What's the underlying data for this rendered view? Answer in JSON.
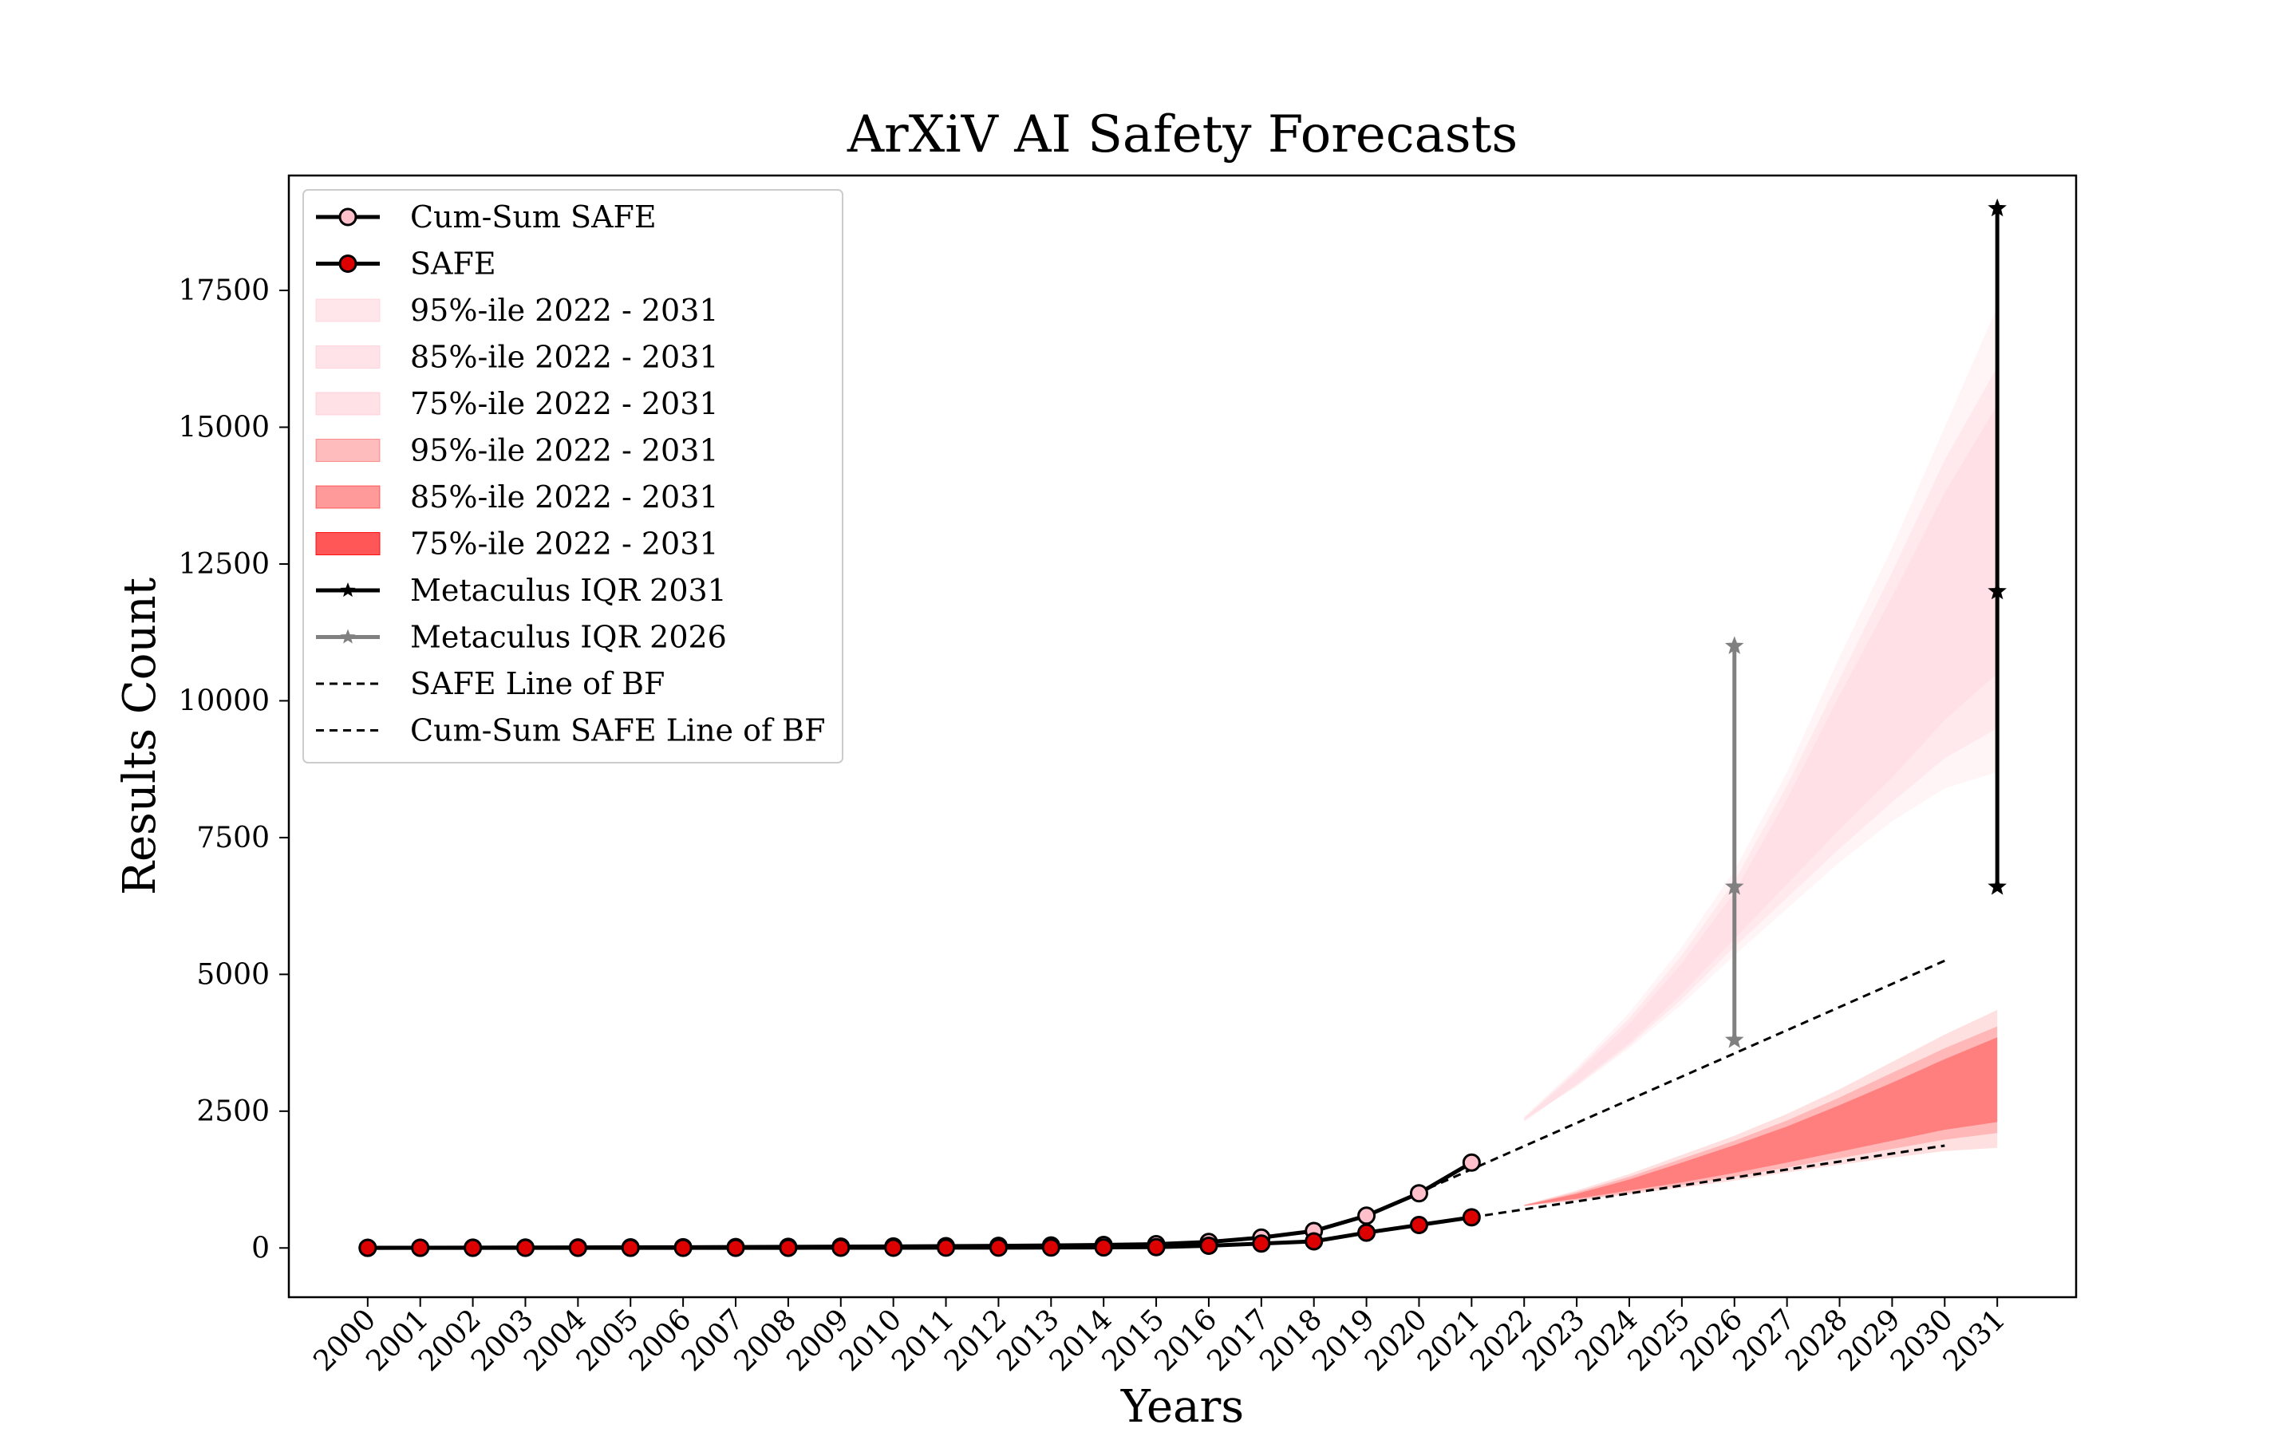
{
  "chart_data": {
    "type": "line",
    "title": "ArXiV AI Safety Forecasts",
    "xlabel": "Years",
    "ylabel": "Results Count",
    "xlim": [
      1998.5,
      2032.5
    ],
    "ylim": [
      -900,
      19600
    ],
    "grid": false,
    "legend_position": "upper-left",
    "x_ticks": [
      2000,
      2001,
      2002,
      2003,
      2004,
      2005,
      2006,
      2007,
      2008,
      2009,
      2010,
      2011,
      2012,
      2013,
      2014,
      2015,
      2016,
      2017,
      2018,
      2019,
      2020,
      2021,
      2022,
      2023,
      2024,
      2025,
      2026,
      2027,
      2028,
      2029,
      2030,
      2031
    ],
    "y_ticks": [
      0,
      2500,
      5000,
      7500,
      10000,
      12500,
      15000,
      17500
    ],
    "series": [
      {
        "name": "Cum-Sum SAFE",
        "kind": "line-marker",
        "color": "#000000",
        "marker_fill": "#ffc0cb",
        "x": [
          2000,
          2001,
          2002,
          2003,
          2004,
          2005,
          2006,
          2007,
          2008,
          2009,
          2010,
          2011,
          2012,
          2013,
          2014,
          2015,
          2016,
          2017,
          2018,
          2019,
          2020,
          2021
        ],
        "y": [
          2,
          4,
          6,
          8,
          10,
          12,
          14,
          17,
          20,
          24,
          28,
          33,
          38,
          45,
          55,
          70,
          110,
          190,
          310,
          590,
          1000,
          1560
        ]
      },
      {
        "name": "SAFE",
        "kind": "line-marker",
        "color": "#000000",
        "marker_fill": "#dd0000",
        "x": [
          2000,
          2001,
          2002,
          2003,
          2004,
          2005,
          2006,
          2007,
          2008,
          2009,
          2010,
          2011,
          2012,
          2013,
          2014,
          2015,
          2016,
          2017,
          2018,
          2019,
          2020,
          2021
        ],
        "y": [
          2,
          2,
          2,
          2,
          2,
          2,
          2,
          3,
          3,
          4,
          4,
          5,
          5,
          7,
          10,
          15,
          40,
          80,
          120,
          280,
          420,
          560
        ]
      },
      {
        "name": "95%-ile 2022 - 2031",
        "kind": "band",
        "color": "#ffc0cb",
        "opacity": 0.18,
        "x": [
          2022,
          2023,
          2024,
          2025,
          2026,
          2027,
          2028,
          2029,
          2030,
          2031
        ],
        "low": [
          2350,
          2950,
          3650,
          4450,
          5350,
          6200,
          7050,
          7800,
          8400,
          8700
        ],
        "high": [
          2400,
          3300,
          4300,
          5500,
          6900,
          8700,
          10800,
          12800,
          15000,
          17200
        ]
      },
      {
        "name": "85%-ile 2022 - 2031",
        "kind": "band",
        "color": "#ffc0cb",
        "opacity": 0.2,
        "x": [
          2022,
          2023,
          2024,
          2025,
          2026,
          2027,
          2028,
          2029,
          2030,
          2031
        ],
        "low": [
          2330,
          2970,
          3700,
          4550,
          5500,
          6400,
          7300,
          8150,
          8950,
          9500
        ],
        "high": [
          2380,
          3250,
          4200,
          5350,
          6700,
          8450,
          10400,
          12350,
          14400,
          16100
        ]
      },
      {
        "name": "75%-ile 2022 - 2031",
        "kind": "band",
        "color": "#ffc0cb",
        "opacity": 0.22,
        "x": [
          2022,
          2023,
          2024,
          2025,
          2026,
          2027,
          2028,
          2029,
          2030,
          2031
        ],
        "low": [
          2300,
          3000,
          3750,
          4650,
          5650,
          6650,
          7650,
          8600,
          9650,
          10500
        ],
        "high": [
          2360,
          3200,
          4100,
          5200,
          6500,
          8200,
          10100,
          11900,
          13800,
          15400
        ]
      },
      {
        "name": "95%-ile 2022 - 2031",
        "kind": "band",
        "color": "#ff0000",
        "opacity": 0.12,
        "x": [
          2022,
          2023,
          2024,
          2025,
          2026,
          2027,
          2028,
          2029,
          2030,
          2031
        ],
        "low": [
          760,
          860,
          980,
          1100,
          1230,
          1380,
          1520,
          1650,
          1770,
          1830
        ],
        "high": [
          790,
          1050,
          1350,
          1700,
          2050,
          2450,
          2900,
          3400,
          3900,
          4350
        ]
      },
      {
        "name": "85%-ile 2022 - 2031",
        "kind": "band",
        "color": "#ff0000",
        "opacity": 0.18,
        "x": [
          2022,
          2023,
          2024,
          2025,
          2026,
          2027,
          2028,
          2029,
          2030,
          2031
        ],
        "low": [
          770,
          880,
          1010,
          1150,
          1300,
          1470,
          1640,
          1810,
          1980,
          2100
        ],
        "high": [
          785,
          1020,
          1300,
          1630,
          1960,
          2330,
          2750,
          3200,
          3650,
          4050
        ]
      },
      {
        "name": "75%-ile 2022 - 2031",
        "kind": "band",
        "color": "#ff0000",
        "opacity": 0.3,
        "x": [
          2022,
          2023,
          2024,
          2025,
          2026,
          2027,
          2028,
          2029,
          2030,
          2031
        ],
        "low": [
          775,
          900,
          1050,
          1200,
          1370,
          1560,
          1760,
          1960,
          2160,
          2300
        ],
        "high": [
          780,
          990,
          1250,
          1560,
          1880,
          2220,
          2610,
          3020,
          3450,
          3850
        ]
      },
      {
        "name": "Metaculus IQR 2031",
        "kind": "errorbar",
        "color": "#000000",
        "x": [
          2031,
          2031,
          2031
        ],
        "y": [
          6600,
          12000,
          19000
        ]
      },
      {
        "name": "Metaculus IQR 2026",
        "kind": "errorbar",
        "color": "#808080",
        "x": [
          2026,
          2026,
          2026
        ],
        "y": [
          3800,
          6600,
          11000
        ]
      },
      {
        "name": "SAFE Line of BF",
        "kind": "dashed",
        "color": "#000000",
        "x": [
          2021,
          2030
        ],
        "y": [
          560,
          1870
        ]
      },
      {
        "name": "Cum-Sum SAFE Line of BF",
        "kind": "dashed",
        "color": "#000000",
        "x": [
          2019,
          2030
        ],
        "y": [
          590,
          5250
        ]
      }
    ]
  }
}
